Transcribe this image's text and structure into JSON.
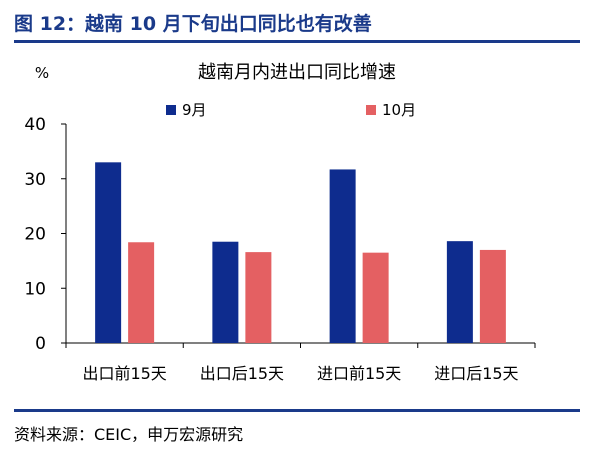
{
  "figure": {
    "title": "图 12：越南 10 月下旬出口同比也有改善",
    "source": "资料来源：CEIC，申万宏源研究"
  },
  "chart_data": {
    "type": "bar",
    "title": "越南月内进出口同比增速",
    "ylabel": "%",
    "xlabel": "",
    "ylim": [
      0,
      40
    ],
    "yticks": [
      0,
      10,
      20,
      30,
      40
    ],
    "grid": false,
    "legend": "top",
    "categories": [
      "出口前15天",
      "出口后15天",
      "进口前15天",
      "进口后15天"
    ],
    "series": [
      {
        "name": "9月",
        "color": "#0e2c8e",
        "values": [
          33,
          18.5,
          31.7,
          18.6
        ]
      },
      {
        "name": "10月",
        "color": "#e46062",
        "values": [
          18.4,
          16.6,
          16.5,
          17.0
        ]
      }
    ]
  }
}
